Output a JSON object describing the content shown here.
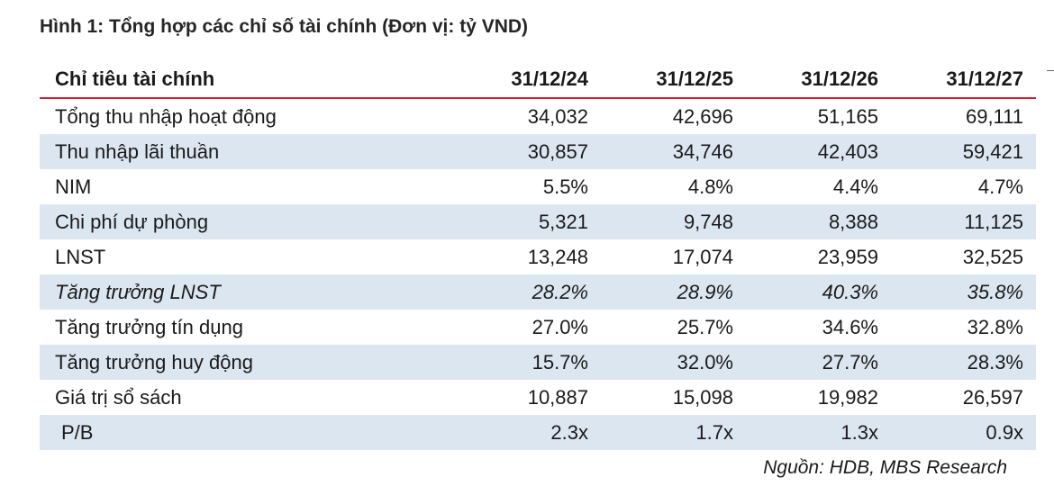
{
  "title": "Hình 1: Tổng hợp các chỉ số tài chính (Đơn vị: tỷ VND)",
  "table": {
    "header": {
      "label": "Chỉ tiêu tài chính",
      "columns": [
        "31/12/24",
        "31/12/25",
        "31/12/26",
        "31/12/27"
      ]
    },
    "rows": [
      {
        "label": "Tổng thu nhập hoạt động",
        "values": [
          "34,032",
          "42,696",
          "51,165",
          "69,111"
        ]
      },
      {
        "label": "Thu nhập lãi thuần",
        "values": [
          "30,857",
          "34,746",
          "42,403",
          "59,421"
        ]
      },
      {
        "label": "NIM",
        "values": [
          "5.5%",
          "4.8%",
          "4.4%",
          "4.7%"
        ]
      },
      {
        "label": "Chi phí dự phòng",
        "values": [
          "5,321",
          "9,748",
          "8,388",
          "11,125"
        ]
      },
      {
        "label": "LNST",
        "values": [
          "13,248",
          "17,074",
          "23,959",
          "32,525"
        ]
      },
      {
        "label": "Tăng trưởng LNST",
        "values": [
          "28.2%",
          "28.9%",
          "40.3%",
          "35.8%"
        ]
      },
      {
        "label": "Tăng trưởng tín dụng",
        "values": [
          "27.0%",
          "25.7%",
          "34.6%",
          "32.8%"
        ]
      },
      {
        "label": "Tăng trưởng huy động",
        "values": [
          "15.7%",
          "32.0%",
          "27.7%",
          "28.3%"
        ]
      },
      {
        "label": "Giá trị sổ sách",
        "values": [
          "10,887",
          "15,098",
          "19,982",
          "26,597"
        ]
      },
      {
        "label": "P/B",
        "values": [
          "2.3x",
          "1.7x",
          "1.3x",
          "0.9x"
        ]
      }
    ]
  },
  "source": "Nguồn: HDB, MBS Research",
  "colors": {
    "header_rule": "#d0202f",
    "row_shade": "#dce6f1"
  }
}
